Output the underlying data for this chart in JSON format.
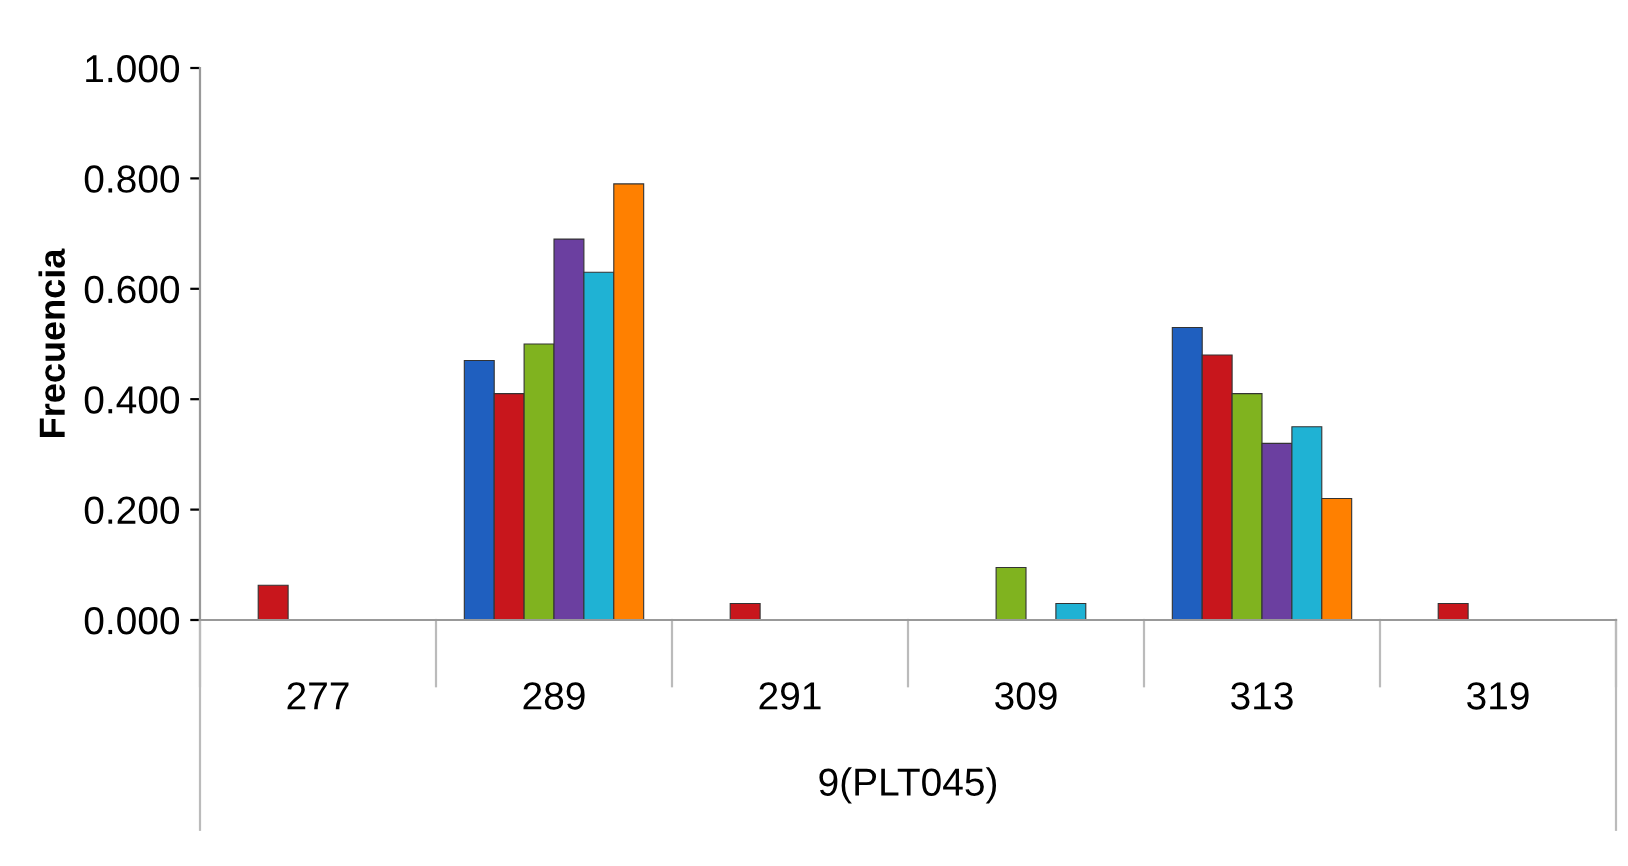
{
  "chart_data": {
    "type": "bar",
    "xlabel": "9(PLT045)",
    "ylabel": "Frecuencia",
    "categories": [
      "277",
      "289",
      "291",
      "309",
      "313",
      "319"
    ],
    "series": [
      {
        "color": "#1f5fbf",
        "values": [
          null,
          0.47,
          null,
          null,
          0.53,
          null
        ]
      },
      {
        "color": "#c8161c",
        "values": [
          0.063,
          0.41,
          0.03,
          null,
          0.48,
          0.03
        ]
      },
      {
        "color": "#80b31f",
        "values": [
          null,
          0.5,
          null,
          0.095,
          0.41,
          null
        ]
      },
      {
        "color": "#6b3fa0",
        "values": [
          null,
          0.69,
          null,
          null,
          0.32,
          null
        ]
      },
      {
        "color": "#1fb2d4",
        "values": [
          null,
          0.63,
          null,
          0.03,
          0.35,
          null
        ]
      },
      {
        "color": "#ff8000",
        "values": [
          null,
          0.79,
          null,
          null,
          0.22,
          null
        ]
      }
    ],
    "ylim": [
      0,
      1
    ],
    "yticks": [
      {
        "value": 0,
        "label": "0.000"
      },
      {
        "value": 0.2,
        "label": "0.200"
      },
      {
        "value": 0.4,
        "label": "0.400"
      },
      {
        "value": 0.6,
        "label": "0.600"
      },
      {
        "value": 0.8,
        "label": "0.800"
      },
      {
        "value": 1,
        "label": "1.000"
      }
    ],
    "grid": false,
    "legend": false
  }
}
